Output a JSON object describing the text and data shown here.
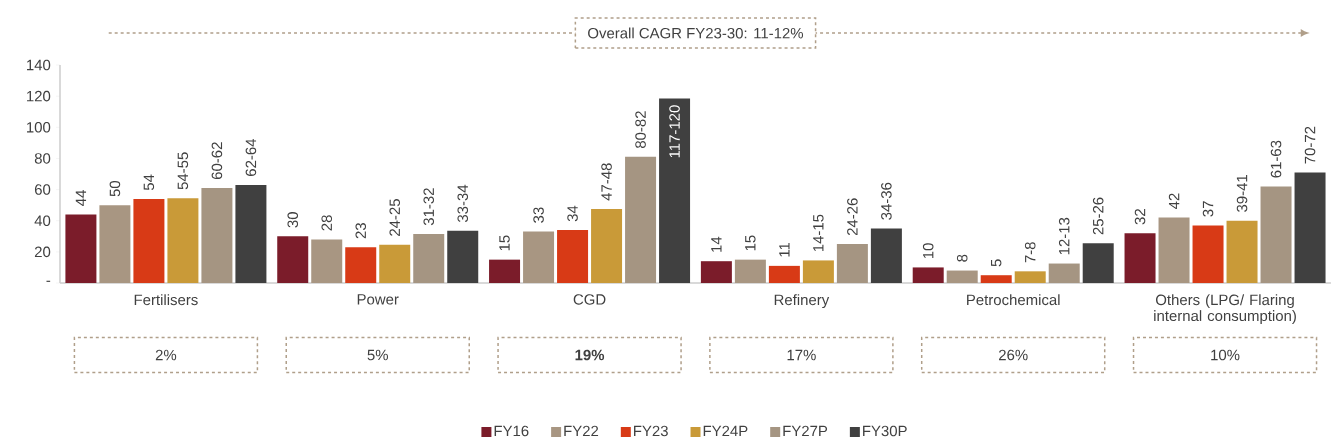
{
  "chart_data": {
    "type": "bar",
    "categories": [
      "Fertilisers",
      "Power",
      "CGD",
      "Refinery",
      "Petrochemical",
      "Others (LPG/ Flaring internal consumption)"
    ],
    "series": [
      {
        "name": "FY16",
        "color": "#7b1c2a",
        "values": [
          44,
          30,
          15,
          14,
          10,
          32
        ],
        "value_labels": [
          "44",
          "30",
          "15",
          "14",
          "10",
          "32"
        ]
      },
      {
        "name": "FY22",
        "color": "#a89682",
        "values": [
          50,
          28,
          33,
          15,
          8,
          42
        ],
        "value_labels": [
          "50",
          "28",
          "33",
          "15",
          "8",
          "42"
        ]
      },
      {
        "name": "FY23",
        "color": "#d83a16",
        "values": [
          54,
          23,
          34,
          11,
          5,
          37
        ],
        "value_labels": [
          "54",
          "23",
          "34",
          "11",
          "5",
          "37"
        ]
      },
      {
        "name": "FY24P",
        "color": "#c99a38",
        "values": [
          54.5,
          24.5,
          47.5,
          14.5,
          7.5,
          40
        ],
        "value_labels": [
          "54-55",
          "24-25",
          "47-48",
          "14-15",
          "7-8",
          "39-41"
        ]
      },
      {
        "name": "FY27P",
        "color": "#a59582",
        "values": [
          61,
          31.5,
          81,
          25,
          12.5,
          62
        ],
        "value_labels": [
          "60-62",
          "31-32",
          "80-82",
          "24-26",
          "12-13",
          "61-63"
        ]
      },
      {
        "name": "FY30P",
        "color": "#404040",
        "values": [
          63,
          33.5,
          118.5,
          35,
          25.5,
          71
        ],
        "value_labels": [
          "62-64",
          "33-34",
          "117-120",
          "34-36",
          "25-26",
          "70-72"
        ]
      }
    ],
    "ylim": [
      0,
      140
    ],
    "yticks": [
      {
        "value": 0,
        "label": "-"
      },
      20,
      40,
      60,
      80,
      100,
      120,
      140
    ],
    "grid": false,
    "legend": "bottom",
    "annotations": [
      "Overall CAGR FY23-30: 11-12%",
      "2%",
      "5%",
      "**19%**",
      "17%",
      "26%",
      "10%"
    ]
  }
}
